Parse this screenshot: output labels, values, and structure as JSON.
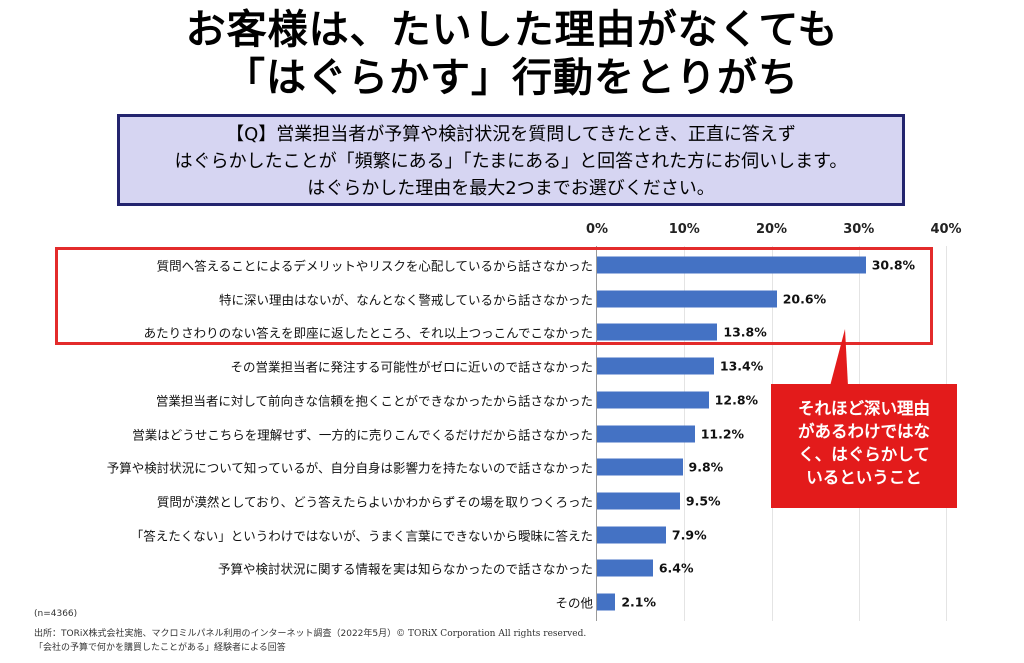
{
  "title": {
    "line1": "お客様は、たいした理由がなくても",
    "line2": "「はぐらかす」行動をとりがち"
  },
  "question": {
    "line1": "【Q】営業担当者が予算や検討状況を質問してきたとき、正直に答えず",
    "line2": "はぐらかしたことが「頻繁にある」「たまにある」と回答された方にお伺いします。",
    "line3": "はぐらかした理由を最大2つまでお選びください。"
  },
  "callout": {
    "line1": "それほど深い理由",
    "line2": "があるわけではな",
    "line3": "く、はぐらかして",
    "line4": "いるということ"
  },
  "footer": {
    "n": "(n=4366)",
    "source": "出所：TORiX株式会社実施、マクロミルパネル利用のインターネット調査（2022年5月）",
    "copyright": "© TORiX Corporation All rights reserved.",
    "note": "「会社の予算で何かを購買したことがある」経験者による回答"
  },
  "colors": {
    "bar": "#4472c4",
    "highlight": "#e32b2b",
    "callout": "#e31b1b",
    "question_bg": "#d6d5f2",
    "question_border": "#23246e"
  },
  "chart_data": {
    "type": "bar",
    "orientation": "horizontal",
    "xlim": [
      0,
      40
    ],
    "ticks": [
      "0%",
      "10%",
      "20%",
      "30%",
      "40%"
    ],
    "highlighted_top_n": 3,
    "categories": [
      "質問へ答えることによるデメリットやリスクを心配しているから話さなかった",
      "特に深い理由はないが、なんとなく警戒しているから話さなかった",
      "あたりさわりのない答えを即座に返したところ、それ以上つっこんでこなかった",
      "その営業担当者に発注する可能性がゼロに近いので話さなかった",
      "営業担当者に対して前向きな信頼を抱くことができなかったから話さなかった",
      "営業はどうせこちらを理解せず、一方的に売りこんでくるだけだから話さなかった",
      "予算や検討状況について知っているが、自分自身は影響力を持たないので話さなかった",
      "質問が漠然としており、どう答えたらよいかわからずその場を取りつくろった",
      "「答えたくない」というわけではないが、うまく言葉にできないから曖昧に答えた",
      "予算や検討状況に関する情報を実は知らなかったので話さなかった",
      "その他"
    ],
    "values": [
      30.8,
      20.6,
      13.8,
      13.4,
      12.8,
      11.2,
      9.8,
      9.5,
      7.9,
      6.4,
      2.1
    ],
    "value_labels": [
      "30.8%",
      "20.6%",
      "13.8%",
      "13.4%",
      "12.8%",
      "11.2%",
      "9.8%",
      "9.5%",
      "7.9%",
      "6.4%",
      "2.1%"
    ]
  }
}
